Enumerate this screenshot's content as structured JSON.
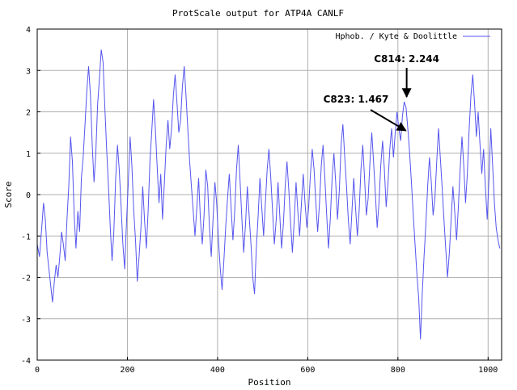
{
  "chart_data": {
    "type": "line",
    "title": "ProtScale output for ATP4A CANLF",
    "xlabel": "Position",
    "ylabel": "Score",
    "xlim": [
      0,
      1030
    ],
    "ylim": [
      -4,
      4
    ],
    "grid": true,
    "legend_position": "top-right",
    "x_ticks": [
      "0",
      "200",
      "400",
      "600",
      "800",
      "1000"
    ],
    "y_ticks": [
      "4",
      "3",
      "2",
      "1",
      "0",
      "-1",
      "-2",
      "-3",
      "-4"
    ],
    "series": [
      {
        "name": "Hphob. / Kyte & Doolittle",
        "color": "#5555ee",
        "points": [
          [
            0,
            -1.2
          ],
          [
            5,
            -1.5
          ],
          [
            10,
            -0.8
          ],
          [
            14,
            -0.2
          ],
          [
            18,
            -0.6
          ],
          [
            22,
            -1.4
          ],
          [
            26,
            -1.8
          ],
          [
            30,
            -2.2
          ],
          [
            34,
            -2.6
          ],
          [
            38,
            -2.1
          ],
          [
            42,
            -1.7
          ],
          [
            46,
            -2.0
          ],
          [
            50,
            -1.5
          ],
          [
            54,
            -0.9
          ],
          [
            58,
            -1.2
          ],
          [
            62,
            -1.6
          ],
          [
            66,
            -0.6
          ],
          [
            70,
            0.2
          ],
          [
            74,
            1.4
          ],
          [
            78,
            0.8
          ],
          [
            82,
            -0.5
          ],
          [
            86,
            -1.3
          ],
          [
            90,
            -0.4
          ],
          [
            94,
            -0.9
          ],
          [
            98,
            0.4
          ],
          [
            102,
            0.9
          ],
          [
            106,
            1.7
          ],
          [
            110,
            2.5
          ],
          [
            114,
            3.1
          ],
          [
            118,
            2.4
          ],
          [
            122,
            1.2
          ],
          [
            126,
            0.3
          ],
          [
            130,
            1.0
          ],
          [
            134,
            2.2
          ],
          [
            138,
            2.8
          ],
          [
            142,
            3.5
          ],
          [
            146,
            3.2
          ],
          [
            150,
            2.1
          ],
          [
            154,
            1.1
          ],
          [
            158,
            0.2
          ],
          [
            162,
            -0.8
          ],
          [
            166,
            -1.6
          ],
          [
            170,
            -0.9
          ],
          [
            174,
            0.4
          ],
          [
            178,
            1.2
          ],
          [
            182,
            0.6
          ],
          [
            186,
            -0.3
          ],
          [
            190,
            -1.2
          ],
          [
            194,
            -1.8
          ],
          [
            198,
            -0.7
          ],
          [
            202,
            0.3
          ],
          [
            206,
            1.4
          ],
          [
            210,
            0.7
          ],
          [
            214,
            -0.4
          ],
          [
            218,
            -1.1
          ],
          [
            222,
            -2.1
          ],
          [
            226,
            -1.5
          ],
          [
            230,
            -0.8
          ],
          [
            234,
            0.2
          ],
          [
            238,
            -0.6
          ],
          [
            242,
            -1.3
          ],
          [
            246,
            -0.4
          ],
          [
            250,
            0.8
          ],
          [
            254,
            1.5
          ],
          [
            258,
            2.3
          ],
          [
            262,
            1.6
          ],
          [
            266,
            0.7
          ],
          [
            270,
            -0.2
          ],
          [
            274,
            0.5
          ],
          [
            278,
            -0.6
          ],
          [
            282,
            0.3
          ],
          [
            286,
            1.2
          ],
          [
            290,
            1.8
          ],
          [
            294,
            1.1
          ],
          [
            298,
            1.6
          ],
          [
            302,
            2.4
          ],
          [
            306,
            2.9
          ],
          [
            310,
            2.2
          ],
          [
            314,
            1.5
          ],
          [
            318,
            1.8
          ],
          [
            322,
            2.6
          ],
          [
            326,
            3.1
          ],
          [
            330,
            2.4
          ],
          [
            334,
            1.6
          ],
          [
            338,
            0.8
          ],
          [
            342,
            0.2
          ],
          [
            346,
            -0.4
          ],
          [
            350,
            -1.0
          ],
          [
            354,
            -0.3
          ],
          [
            358,
            0.4
          ],
          [
            362,
            -0.6
          ],
          [
            366,
            -1.2
          ],
          [
            370,
            -0.5
          ],
          [
            374,
            0.6
          ],
          [
            378,
            0.2
          ],
          [
            382,
            -0.8
          ],
          [
            386,
            -1.5
          ],
          [
            390,
            -0.6
          ],
          [
            394,
            0.3
          ],
          [
            398,
            -0.2
          ],
          [
            402,
            -1.1
          ],
          [
            406,
            -1.8
          ],
          [
            410,
            -2.3
          ],
          [
            414,
            -1.6
          ],
          [
            418,
            -0.8
          ],
          [
            422,
            -0.1
          ],
          [
            426,
            0.5
          ],
          [
            430,
            -0.3
          ],
          [
            434,
            -1.1
          ],
          [
            438,
            -0.4
          ],
          [
            442,
            0.6
          ],
          [
            446,
            1.2
          ],
          [
            450,
            0.3
          ],
          [
            454,
            -0.6
          ],
          [
            458,
            -1.4
          ],
          [
            462,
            -0.7
          ],
          [
            466,
            0.2
          ],
          [
            470,
            -0.5
          ],
          [
            474,
            -1.2
          ],
          [
            478,
            -2.0
          ],
          [
            482,
            -2.4
          ],
          [
            486,
            -1.3
          ],
          [
            490,
            -0.5
          ],
          [
            494,
            0.4
          ],
          [
            498,
            -0.3
          ],
          [
            502,
            -1.0
          ],
          [
            506,
            -0.2
          ],
          [
            510,
            0.6
          ],
          [
            514,
            1.1
          ],
          [
            518,
            0.4
          ],
          [
            522,
            -0.4
          ],
          [
            526,
            -1.2
          ],
          [
            530,
            -0.6
          ],
          [
            534,
            0.3
          ],
          [
            538,
            -0.5
          ],
          [
            542,
            -1.3
          ],
          [
            546,
            -0.7
          ],
          [
            550,
            0.2
          ],
          [
            554,
            0.8
          ],
          [
            558,
            0.1
          ],
          [
            562,
            -0.7
          ],
          [
            566,
            -1.4
          ],
          [
            570,
            -0.6
          ],
          [
            574,
            0.3
          ],
          [
            578,
            -0.4
          ],
          [
            582,
            -1.0
          ],
          [
            586,
            -0.2
          ],
          [
            590,
            0.5
          ],
          [
            594,
            -0.2
          ],
          [
            598,
            -0.8
          ],
          [
            602,
            -0.3
          ],
          [
            606,
            0.5
          ],
          [
            610,
            1.1
          ],
          [
            614,
            0.6
          ],
          [
            618,
            -0.2
          ],
          [
            622,
            -0.9
          ],
          [
            626,
            -0.2
          ],
          [
            630,
            0.7
          ],
          [
            634,
            1.2
          ],
          [
            638,
            0.4
          ],
          [
            642,
            -0.5
          ],
          [
            646,
            -1.3
          ],
          [
            650,
            -0.6
          ],
          [
            654,
            0.4
          ],
          [
            658,
            1.0
          ],
          [
            662,
            0.3
          ],
          [
            666,
            -0.6
          ],
          [
            670,
            0.1
          ],
          [
            674,
            1.2
          ],
          [
            678,
            1.7
          ],
          [
            682,
            0.9
          ],
          [
            686,
            0.2
          ],
          [
            690,
            -0.6
          ],
          [
            694,
            -1.2
          ],
          [
            698,
            -0.4
          ],
          [
            702,
            0.4
          ],
          [
            706,
            -0.3
          ],
          [
            710,
            -1.0
          ],
          [
            714,
            -0.4
          ],
          [
            718,
            0.6
          ],
          [
            722,
            1.2
          ],
          [
            726,
            0.4
          ],
          [
            730,
            -0.5
          ],
          [
            734,
            -0.1
          ],
          [
            738,
            0.8
          ],
          [
            742,
            1.5
          ],
          [
            746,
            0.8
          ],
          [
            750,
            0.0
          ],
          [
            754,
            -0.8
          ],
          [
            758,
            -0.2
          ],
          [
            762,
            0.7
          ],
          [
            766,
            1.3
          ],
          [
            770,
            0.6
          ],
          [
            774,
            -0.3
          ],
          [
            778,
            0.3
          ],
          [
            782,
            1.1
          ],
          [
            786,
            1.6
          ],
          [
            790,
            0.9
          ],
          [
            794,
            1.5
          ],
          [
            798,
            2.0
          ],
          [
            802,
            1.6
          ],
          [
            806,
            1.3
          ],
          [
            810,
            1.9
          ],
          [
            814,
            2.244
          ],
          [
            818,
            2.1
          ],
          [
            823,
            1.467
          ],
          [
            826,
            1.0
          ],
          [
            830,
            0.3
          ],
          [
            834,
            -0.5
          ],
          [
            838,
            -1.2
          ],
          [
            842,
            -1.9
          ],
          [
            846,
            -2.5
          ],
          [
            850,
            -3.5
          ],
          [
            854,
            -2.4
          ],
          [
            858,
            -1.5
          ],
          [
            862,
            -0.7
          ],
          [
            866,
            0.2
          ],
          [
            870,
            0.9
          ],
          [
            874,
            0.3
          ],
          [
            878,
            -0.5
          ],
          [
            882,
            -0.1
          ],
          [
            886,
            0.8
          ],
          [
            890,
            1.6
          ],
          [
            894,
            0.9
          ],
          [
            898,
            0.2
          ],
          [
            902,
            -0.6
          ],
          [
            906,
            -1.3
          ],
          [
            910,
            -2.0
          ],
          [
            914,
            -1.4
          ],
          [
            918,
            -0.6
          ],
          [
            922,
            0.2
          ],
          [
            926,
            -0.4
          ],
          [
            930,
            -1.1
          ],
          [
            934,
            -0.3
          ],
          [
            938,
            0.6
          ],
          [
            942,
            1.4
          ],
          [
            946,
            0.7
          ],
          [
            950,
            -0.2
          ],
          [
            954,
            0.5
          ],
          [
            958,
            1.6
          ],
          [
            962,
            2.4
          ],
          [
            966,
            2.9
          ],
          [
            970,
            2.2
          ],
          [
            974,
            1.4
          ],
          [
            978,
            2.0
          ],
          [
            982,
            1.2
          ],
          [
            986,
            0.5
          ],
          [
            990,
            1.1
          ],
          [
            994,
            0.2
          ],
          [
            998,
            -0.6
          ],
          [
            1002,
            0.4
          ],
          [
            1006,
            1.6
          ],
          [
            1010,
            0.7
          ],
          [
            1014,
            -0.2
          ],
          [
            1018,
            -0.8
          ],
          [
            1022,
            -1.1
          ],
          [
            1026,
            -1.3
          ]
        ]
      }
    ],
    "annotations": [
      {
        "text": "C814: 2.244",
        "x": 814,
        "y": 2.244
      },
      {
        "text": "C823: 1.467",
        "x": 823,
        "y": 1.467
      }
    ]
  }
}
